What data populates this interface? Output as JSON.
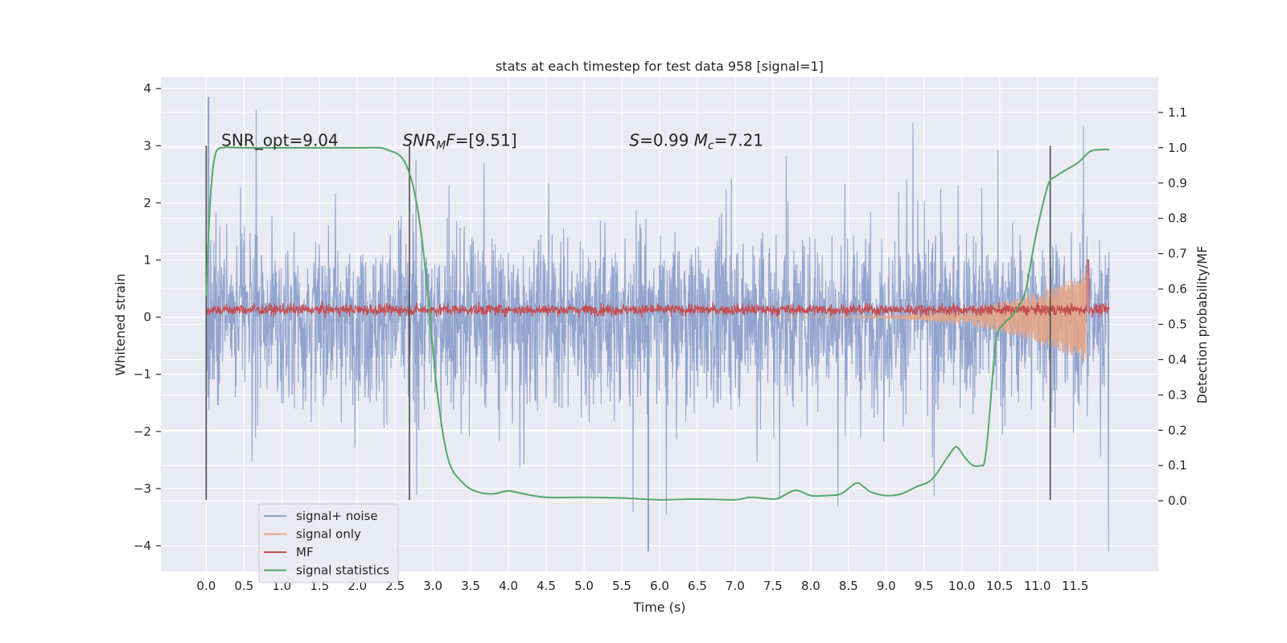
{
  "chart_data": {
    "type": "line",
    "title": "stats at each timestep for test data 958 [signal=1]",
    "xlabel": "Time (s)",
    "ylabel_left": "Whitened strain",
    "ylabel_right": "Detection probability/MF",
    "xlim": [
      -0.6,
      12.6
    ],
    "ylim_left": [
      -4.45,
      4.2
    ],
    "ylim_right": [
      -0.2,
      1.2
    ],
    "x_ticks": [
      0.0,
      0.5,
      1.0,
      1.5,
      2.0,
      2.5,
      3.0,
      3.5,
      4.0,
      4.5,
      5.0,
      5.5,
      6.0,
      6.5,
      7.0,
      7.5,
      8.0,
      8.5,
      9.0,
      9.5,
      10.0,
      10.5,
      11.0,
      11.5
    ],
    "x_tick_labels": [
      "0.0",
      "0.5",
      "1.0",
      "1.5",
      "2.0",
      "2.5",
      "3.0",
      "3.5",
      "4.0",
      "4.5",
      "5.0",
      "5.5",
      "6.0",
      "6.5",
      "7.0",
      "7.5",
      "8.0",
      "8.5",
      "9.0",
      "9.5",
      "10.0",
      "10.5",
      "11.0",
      "11.5"
    ],
    "y_ticks_left": [
      4,
      3,
      2,
      1,
      0,
      -1,
      -2,
      -3,
      -4
    ],
    "y_tick_labels_left": [
      "4",
      "3",
      "2",
      "1",
      "0",
      "−1",
      "−2",
      "−3",
      "−4"
    ],
    "y_ticks_right": [
      1.1,
      1.0,
      0.9,
      0.8,
      0.7,
      0.6,
      0.5,
      0.4,
      0.3,
      0.2,
      0.1,
      0.0
    ],
    "y_tick_labels_right": [
      "1.1",
      "1.0",
      "0.9",
      "0.8",
      "0.7",
      "0.6",
      "0.5",
      "0.4",
      "0.3",
      "0.2",
      "0.1",
      "0.0"
    ],
    "grid": true,
    "legend_position": "lower-left",
    "annotations": [
      {
        "segments": [
          {
            "text": "SNR_opt=9.04",
            "italic": false
          }
        ],
        "x": 0.2,
        "y": 3.0
      },
      {
        "segments": [
          {
            "text": "SNR",
            "italic": true
          },
          {
            "text": "M",
            "italic": true,
            "sub": true
          },
          {
            "text": "F",
            "italic": true
          },
          {
            "text": "=[9.51]",
            "italic": false
          }
        ],
        "x": 2.6,
        "y": 3.0
      },
      {
        "segments": [
          {
            "text": "S",
            "italic": true
          },
          {
            "text": "=0.99   ",
            "italic": false
          },
          {
            "text": "M",
            "italic": true
          },
          {
            "text": "c",
            "italic": true,
            "sub": true
          },
          {
            "text": "=7.21",
            "italic": false
          }
        ],
        "x": 5.6,
        "y": 3.0
      }
    ],
    "vertical_markers": [
      {
        "x": 0.0,
        "y_range": [
          -3.2,
          3.0
        ]
      },
      {
        "x": 2.69,
        "y_range": [
          -3.2,
          3.0
        ]
      },
      {
        "x": 11.17,
        "y_range": [
          -3.2,
          3.0
        ]
      }
    ],
    "series": [
      {
        "name": "signal+ noise",
        "axis": "left",
        "color": "#8da0cb",
        "kind": "noise",
        "t_start": 0.0,
        "t_end": 11.95,
        "typical_amplitude": 1.15,
        "peak_max": 3.85,
        "peak_min": -4.1
      },
      {
        "name": "signal only",
        "axis": "left",
        "color": "#e8a482",
        "kind": "chirp",
        "t_start": 7.5,
        "t_end": 11.65,
        "peak_amplitude": 0.8
      },
      {
        "name": "MF",
        "axis": "left",
        "color": "#c44e52",
        "kind": "band",
        "t_start": 0.0,
        "t_end": 11.95,
        "baseline": 0.13,
        "spread": 0.1,
        "spike": {
          "x": 11.67,
          "value": 1.0
        }
      },
      {
        "name": "signal statistics",
        "axis": "right",
        "color": "#55a868",
        "x": [
          0.0,
          0.03,
          0.07,
          0.12,
          0.2,
          0.5,
          1.0,
          1.5,
          2.0,
          2.3,
          2.45,
          2.55,
          2.65,
          2.75,
          2.85,
          2.95,
          3.05,
          3.2,
          3.4,
          3.6,
          3.8,
          4.0,
          4.2,
          4.5,
          5.0,
          5.5,
          6.0,
          6.5,
          7.0,
          7.2,
          7.5,
          7.6,
          7.8,
          8.0,
          8.2,
          8.4,
          8.6,
          8.7,
          8.8,
          9.0,
          9.2,
          9.4,
          9.6,
          9.8,
          9.9,
          9.95,
          10.05,
          10.15,
          10.25,
          10.3,
          10.35,
          10.45,
          10.55,
          10.65,
          10.75,
          10.85,
          10.95,
          11.05,
          11.15,
          11.25,
          11.4,
          11.55,
          11.7,
          11.85,
          11.95
        ],
        "values": [
          0.58,
          0.75,
          0.9,
          0.98,
          1.0,
          1.0,
          1.0,
          1.0,
          1.0,
          1.0,
          0.99,
          0.98,
          0.95,
          0.88,
          0.75,
          0.55,
          0.32,
          0.12,
          0.05,
          0.025,
          0.02,
          0.028,
          0.02,
          0.01,
          0.01,
          0.008,
          0.003,
          0.005,
          0.003,
          0.01,
          0.005,
          0.01,
          0.03,
          0.015,
          0.015,
          0.02,
          0.05,
          0.04,
          0.025,
          0.015,
          0.02,
          0.04,
          0.06,
          0.12,
          0.15,
          0.15,
          0.12,
          0.1,
          0.1,
          0.11,
          0.2,
          0.45,
          0.5,
          0.52,
          0.55,
          0.6,
          0.72,
          0.82,
          0.9,
          0.92,
          0.94,
          0.96,
          0.99,
          0.995,
          0.995
        ]
      }
    ]
  }
}
